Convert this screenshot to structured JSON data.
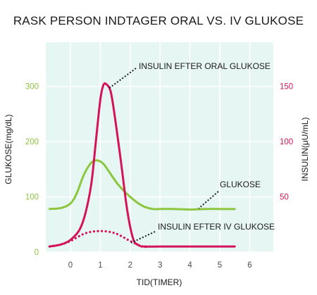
{
  "chart_data": {
    "type": "line",
    "title": "RASK PERSON INDTAGER ORAL VS. IV GLUKOSE",
    "xlabel": "TID(TIMER)",
    "ylabel_left": "GLUKOSE(mg/dL)",
    "ylabel_right": "INSULIN(μU/mL)",
    "xlim": [
      -0.75,
      6.85
    ],
    "ylim_left": [
      0,
      380
    ],
    "ylim_right": [
      0,
      190
    ],
    "x_ticks": [
      "0",
      "1",
      "2",
      "3",
      "4",
      "5",
      "6"
    ],
    "y_left_ticks": [
      "0",
      "100",
      "200",
      "300"
    ],
    "y_right_ticks": [
      "50",
      "100",
      "150"
    ],
    "grid": true,
    "colors": {
      "plot_background": "#e6f6f3",
      "grid": "#ffffff",
      "glucose": "#8cc63f",
      "insulin": "#d4145a",
      "left_axis_text": "#8cc63f",
      "right_axis_text": "#d4145a"
    },
    "series": [
      {
        "name": "GLUKOSE",
        "axis": "left",
        "style": "solid",
        "color": "#8cc63f",
        "x": [
          -0.7,
          -0.3,
          0.0,
          0.2,
          0.45,
          0.7,
          0.9,
          1.1,
          1.3,
          1.6,
          2.0,
          2.4,
          2.75,
          3.0,
          3.5,
          4.0,
          4.5,
          5.0,
          5.5
        ],
        "y": [
          78,
          80,
          88,
          105,
          140,
          162,
          166,
          160,
          145,
          122,
          100,
          84,
          78,
          78,
          78,
          77,
          78,
          78,
          78
        ]
      },
      {
        "name": "INSULIN EFTER ORAL GLUKOSE",
        "axis": "right",
        "style": "solid",
        "color": "#d4145a",
        "x": [
          -0.7,
          -0.3,
          0.0,
          0.3,
          0.5,
          0.7,
          0.85,
          1.0,
          1.1,
          1.2,
          1.35,
          1.5,
          1.7,
          1.9,
          2.1,
          2.3,
          2.5,
          3.0,
          4.0,
          5.0,
          5.5
        ],
        "y": [
          5,
          7,
          11,
          20,
          35,
          62,
          100,
          138,
          151,
          152,
          145,
          120,
          80,
          38,
          12,
          6,
          5,
          5,
          5,
          5,
          5
        ]
      },
      {
        "name": "INSULIN EFTER IV GLUKOSE",
        "axis": "right",
        "style": "dotted",
        "color": "#d4145a",
        "x": [
          -0.7,
          -0.3,
          0.0,
          0.5,
          1.0,
          1.5,
          2.0,
          2.4,
          2.6
        ],
        "y": [
          5,
          7,
          10,
          17,
          19,
          17,
          10,
          5,
          5
        ]
      }
    ],
    "annotations": [
      {
        "text": "INSULIN EFTER ORAL GLUKOSE",
        "target": "INSULIN EFTER ORAL GLUKOSE"
      },
      {
        "text": "GLUKOSE",
        "target": "GLUKOSE"
      },
      {
        "text": "INSULIN EFTER IV GLUKOSE",
        "target": "INSULIN EFTER IV GLUKOSE"
      }
    ]
  }
}
